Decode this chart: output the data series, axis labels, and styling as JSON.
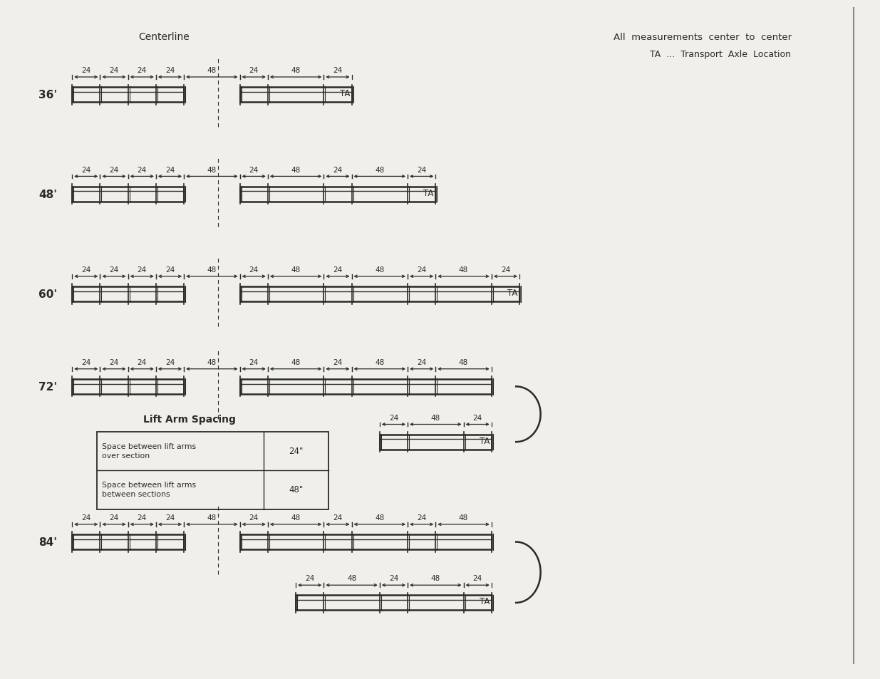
{
  "bg_color": "#f0efea",
  "line_color": "#2a2a2a",
  "title_centerline": "Centerline",
  "title_measurements": "All  measurements  center  to  center",
  "title_ta": "TA  ...  Transport  Axle  Location",
  "lift_arm_table": {
    "title": "Lift Arm Spacing",
    "rows": [
      {
        "label": "Space between lift arms\nover section",
        "value": "24\""
      },
      {
        "label": "Space between lift arms\nbetween sections",
        "value": "48\""
      }
    ]
  }
}
